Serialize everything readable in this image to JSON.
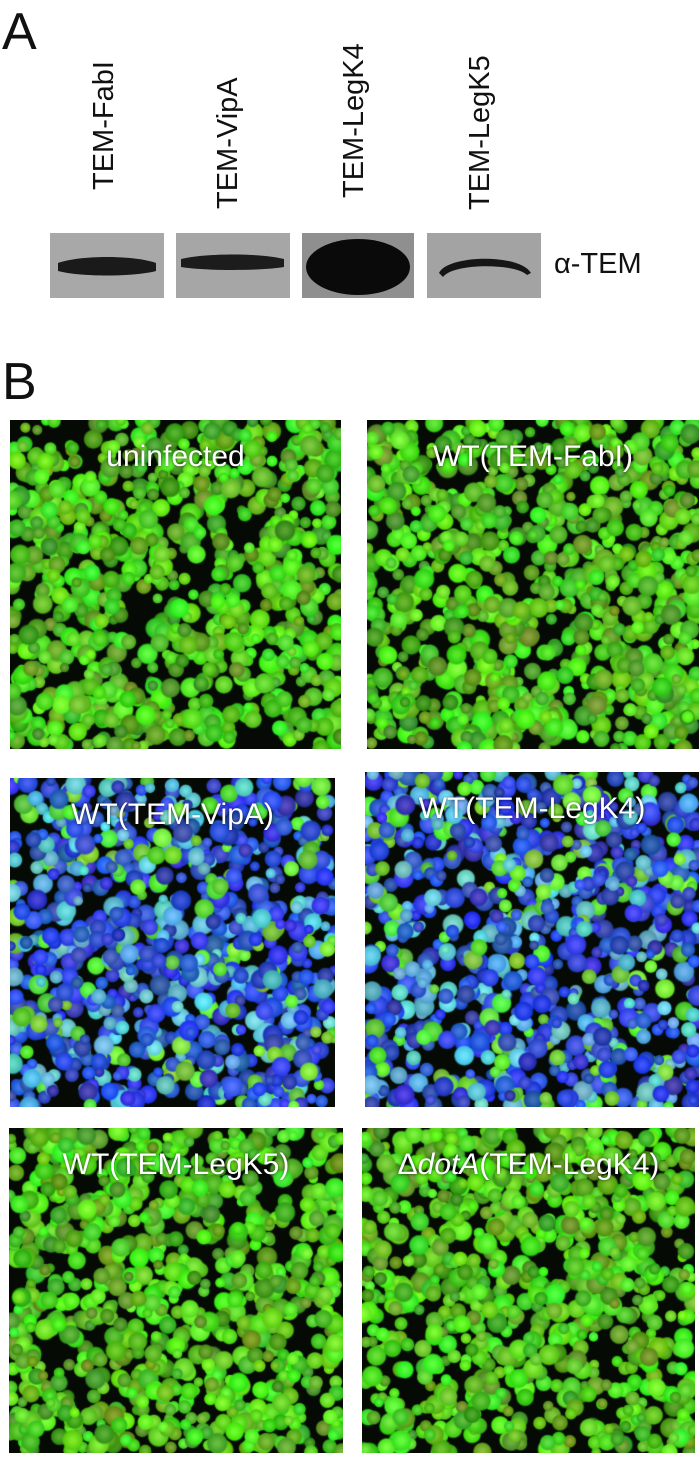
{
  "panel_a": {
    "letter": "A",
    "lanes": [
      {
        "label": "TEM-FabI",
        "band": "thin"
      },
      {
        "label": "TEM-VipA",
        "band": "thin"
      },
      {
        "label": "TEM-LegK4",
        "band": "saturated"
      },
      {
        "label": "TEM-LegK5",
        "band": "curved"
      }
    ],
    "antibody_label": "α-TEM"
  },
  "panel_b": {
    "letter": "B",
    "images": [
      {
        "label_prefix": "",
        "label_italic": "",
        "label": "uninfected",
        "stain": "green"
      },
      {
        "label_prefix": "",
        "label_italic": "",
        "label": "WT(TEM-FabI)",
        "stain": "green"
      },
      {
        "label_prefix": "",
        "label_italic": "",
        "label": "WT(TEM-VipA)",
        "stain": "blue"
      },
      {
        "label_prefix": "",
        "label_italic": "",
        "label": "WT(TEM-LegK4)",
        "stain": "blue"
      },
      {
        "label_prefix": "",
        "label_italic": "",
        "label": "WT(TEM-LegK5)",
        "stain": "green"
      },
      {
        "label_prefix": "Δ",
        "label_italic": "dotA",
        "label": "(TEM-LegK4)",
        "stain": "green"
      }
    ]
  }
}
